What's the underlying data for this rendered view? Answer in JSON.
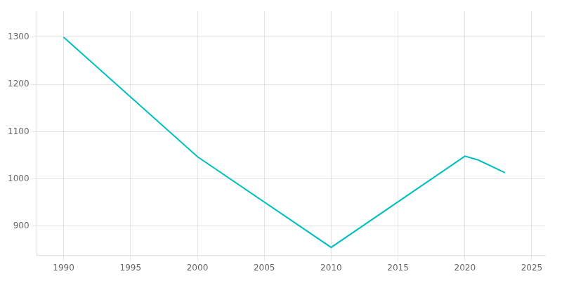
{
  "chart_data": {
    "type": "line",
    "x": [
      1990,
      2000,
      2010,
      2020,
      2021,
      2023
    ],
    "values": [
      1300,
      1047,
      855,
      1048,
      1040,
      1013
    ],
    "color": "#00BFBF",
    "xlim": [
      1988,
      2026
    ],
    "ylim": [
      838,
      1355
    ],
    "xticks": [
      1990,
      1995,
      2000,
      2005,
      2010,
      2015,
      2020,
      2025
    ],
    "yticks": [
      900,
      1000,
      1100,
      1200,
      1300
    ],
    "grid": true
  }
}
